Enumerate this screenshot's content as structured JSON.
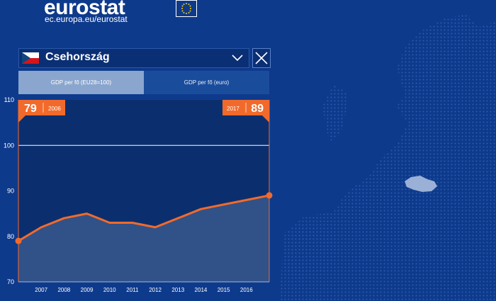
{
  "header": {
    "brand": "eurostat",
    "url": "ec.europa.eu/eurostat"
  },
  "selector": {
    "country": "Csehország"
  },
  "tabs": [
    {
      "label": "GDP per  fő  (EU28=100)",
      "active": true
    },
    {
      "label": "GDP per  fő  (euro)",
      "active": false
    }
  ],
  "colors": {
    "accent": "#f26a2b",
    "background": "#0e3a8c",
    "plot_bg": "#0b2f6e",
    "active_tab": "#8aa6ce",
    "inactive_tab": "#1a4c9c"
  },
  "chart_data": {
    "type": "area",
    "title": "",
    "xlabel": "",
    "ylabel": "",
    "x": [
      2006,
      2007,
      2008,
      2009,
      2010,
      2011,
      2012,
      2013,
      2014,
      2015,
      2016,
      2017
    ],
    "values": [
      79,
      82,
      84,
      85,
      83,
      83,
      82,
      84,
      86,
      87,
      88,
      89
    ],
    "x_tick_labels": [
      "2007",
      "2008",
      "2009",
      "2010",
      "2011",
      "2012",
      "2013",
      "2014",
      "2015",
      "2016"
    ],
    "ylim": [
      70,
      110
    ],
    "y_ticks": [
      70,
      80,
      90,
      100,
      110
    ],
    "reference_line": 100,
    "start_badge": {
      "value": "79",
      "year": "2006"
    },
    "end_badge": {
      "value": "89",
      "year": "2017"
    }
  }
}
